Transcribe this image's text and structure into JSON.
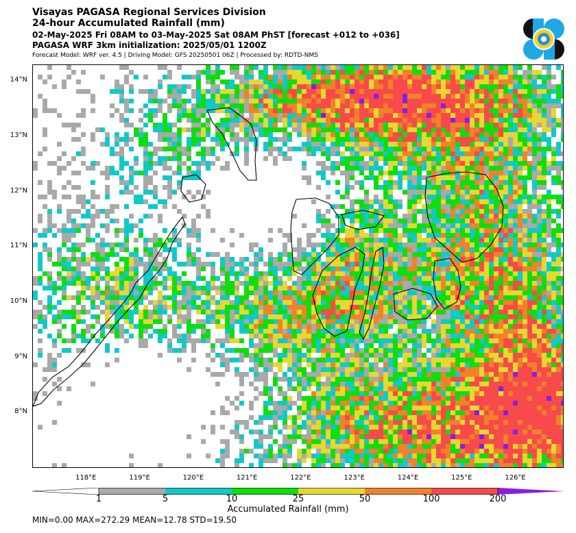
{
  "header": {
    "line1": "Visayas PAGASA Regional Services Division",
    "line2": "24-hour Accumulated Rainfall (mm)",
    "line3": "02-May-2025 Fri 08AM to 03-May-2025 Sat 08AM PhST [forecast +012 to +036]",
    "line4": "PAGASA WRF 3km initialization: 2025/05/01 1200Z",
    "line5": "Forecast Model: WRF ver. 4.5 | Driving Model: GFS 20250501 06Z | Processed by: RDTD-NMS"
  },
  "map": {
    "lat_labels": [
      "14°N",
      "13°N",
      "12°N",
      "11°N",
      "10°N",
      "9°N",
      "8°N"
    ],
    "lon_labels": [
      "118°E",
      "119°E",
      "120°E",
      "121°E",
      "122°E",
      "123°E",
      "124°E",
      "125°E",
      "126°E"
    ],
    "extent": {
      "lon_min": 117.0,
      "lon_max": 126.9,
      "lat_min": 7.0,
      "lat_max": 14.3
    }
  },
  "colorbar": {
    "title": "Accumulated Rainfall (mm)",
    "tick_labels": [
      "1",
      "5",
      "10",
      "25",
      "50",
      "100",
      "200"
    ],
    "classes": [
      {
        "min": 0,
        "max": 1,
        "color": "#ffffff"
      },
      {
        "min": 1,
        "max": 5,
        "color": "#a9a9a9"
      },
      {
        "min": 5,
        "max": 10,
        "color": "#11c9c9"
      },
      {
        "min": 10,
        "max": 25,
        "color": "#10dd10"
      },
      {
        "min": 25,
        "max": 50,
        "color": "#e6d830"
      },
      {
        "min": 50,
        "max": 100,
        "color": "#f0822a"
      },
      {
        "min": 100,
        "max": 200,
        "color": "#f84a4a"
      },
      {
        "min": 200,
        "max": 300,
        "color": "#8a1ee0"
      }
    ]
  },
  "stats": {
    "text": "MIN=0.00   MAX=272.29   MEAN=12.78   STD=19.50",
    "min": 0.0,
    "max": 272.29,
    "mean": 12.78,
    "std": 19.5
  },
  "logo": {
    "name": "pagasa-logo"
  }
}
